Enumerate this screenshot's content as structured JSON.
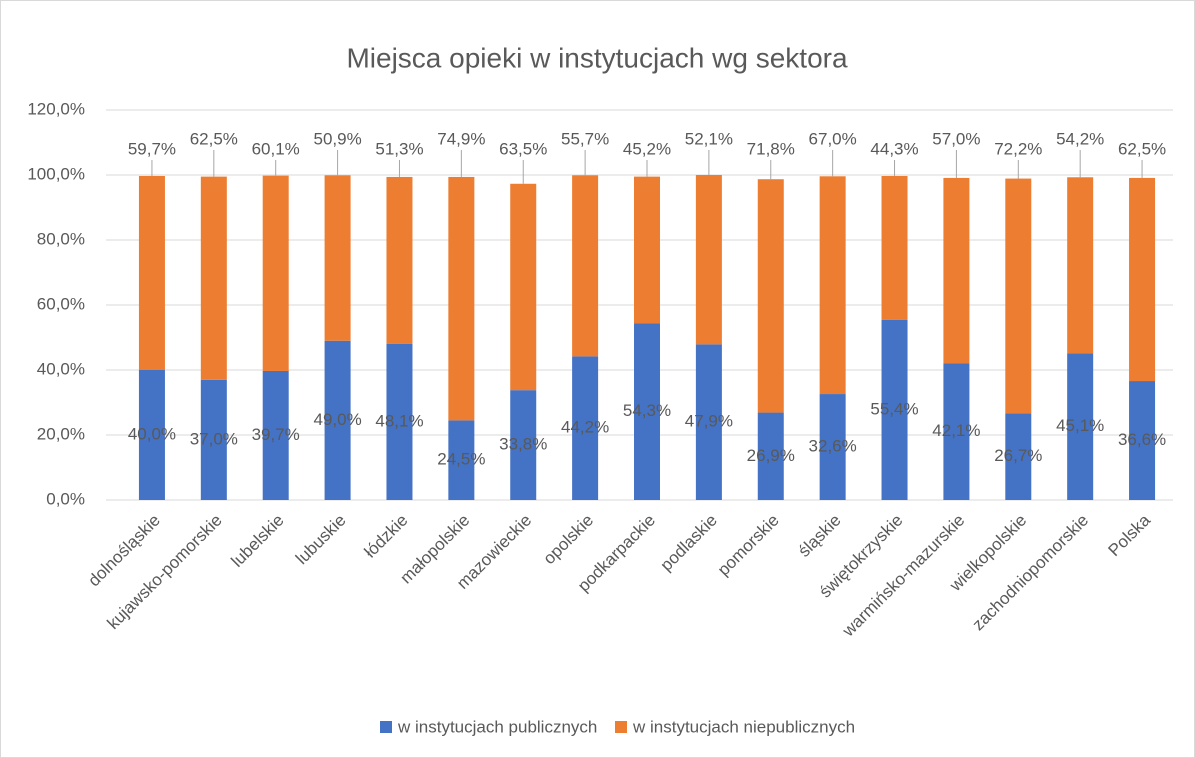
{
  "chart_data": {
    "type": "stacked_bar",
    "title": "Miejsca opieki w instytucjach wg sektora",
    "categories": [
      "dolnośląskie",
      "kujawsko-pomorskie",
      "lubelskie",
      "lubuskie",
      "łódzkie",
      "małopolskie",
      "mazowieckie",
      "opolskie",
      "podkarpackie",
      "podlaskie",
      "pomorskie",
      "śląskie",
      "świętokrzyskie",
      "warmińsko-mazurskie",
      "wielkopolskie",
      "zachodniopomorskie",
      "Polska"
    ],
    "series": [
      {
        "name": "w instytucjach publicznych",
        "color": "#4472c4",
        "values": [
          40.0,
          37.0,
          39.7,
          49.0,
          48.1,
          24.5,
          33.8,
          44.2,
          54.3,
          47.9,
          26.9,
          32.6,
          55.4,
          42.1,
          26.7,
          45.1,
          36.6
        ],
        "value_labels": [
          "40,0%",
          "37,0%",
          "39,7%",
          "49,0%",
          "48,1%",
          "24,5%",
          "33,8%",
          "44,2%",
          "54,3%",
          "47,9%",
          "26,9%",
          "32,6%",
          "55,4%",
          "42,1%",
          "26,7%",
          "45,1%",
          "36,6%"
        ]
      },
      {
        "name": "w instytucjach niepublicznych",
        "color": "#ed7d31",
        "values": [
          59.7,
          62.5,
          60.1,
          50.9,
          51.3,
          74.9,
          63.5,
          55.7,
          45.2,
          52.1,
          71.8,
          67.0,
          44.3,
          57.0,
          72.2,
          54.2,
          62.5
        ],
        "value_labels": [
          "59,7%",
          "62,5%",
          "60,1%",
          "50,9%",
          "51,3%",
          "74,9%",
          "63,5%",
          "55,7%",
          "45,2%",
          "52,1%",
          "71,8%",
          "67,0%",
          "44,3%",
          "57,0%",
          "72,2%",
          "54,2%",
          "62,5%"
        ]
      }
    ],
    "ylim": [
      0,
      120
    ],
    "yticks": [
      {
        "value": 0,
        "label": "0,0%"
      },
      {
        "value": 20,
        "label": "20,0%"
      },
      {
        "value": 40,
        "label": "40,0%"
      },
      {
        "value": 60,
        "label": "60,0%"
      },
      {
        "value": 80,
        "label": "80,0%"
      },
      {
        "value": 100,
        "label": "100,0%"
      },
      {
        "value": 120,
        "label": "120,0%"
      }
    ],
    "grid": true,
    "legend": "bottom"
  }
}
